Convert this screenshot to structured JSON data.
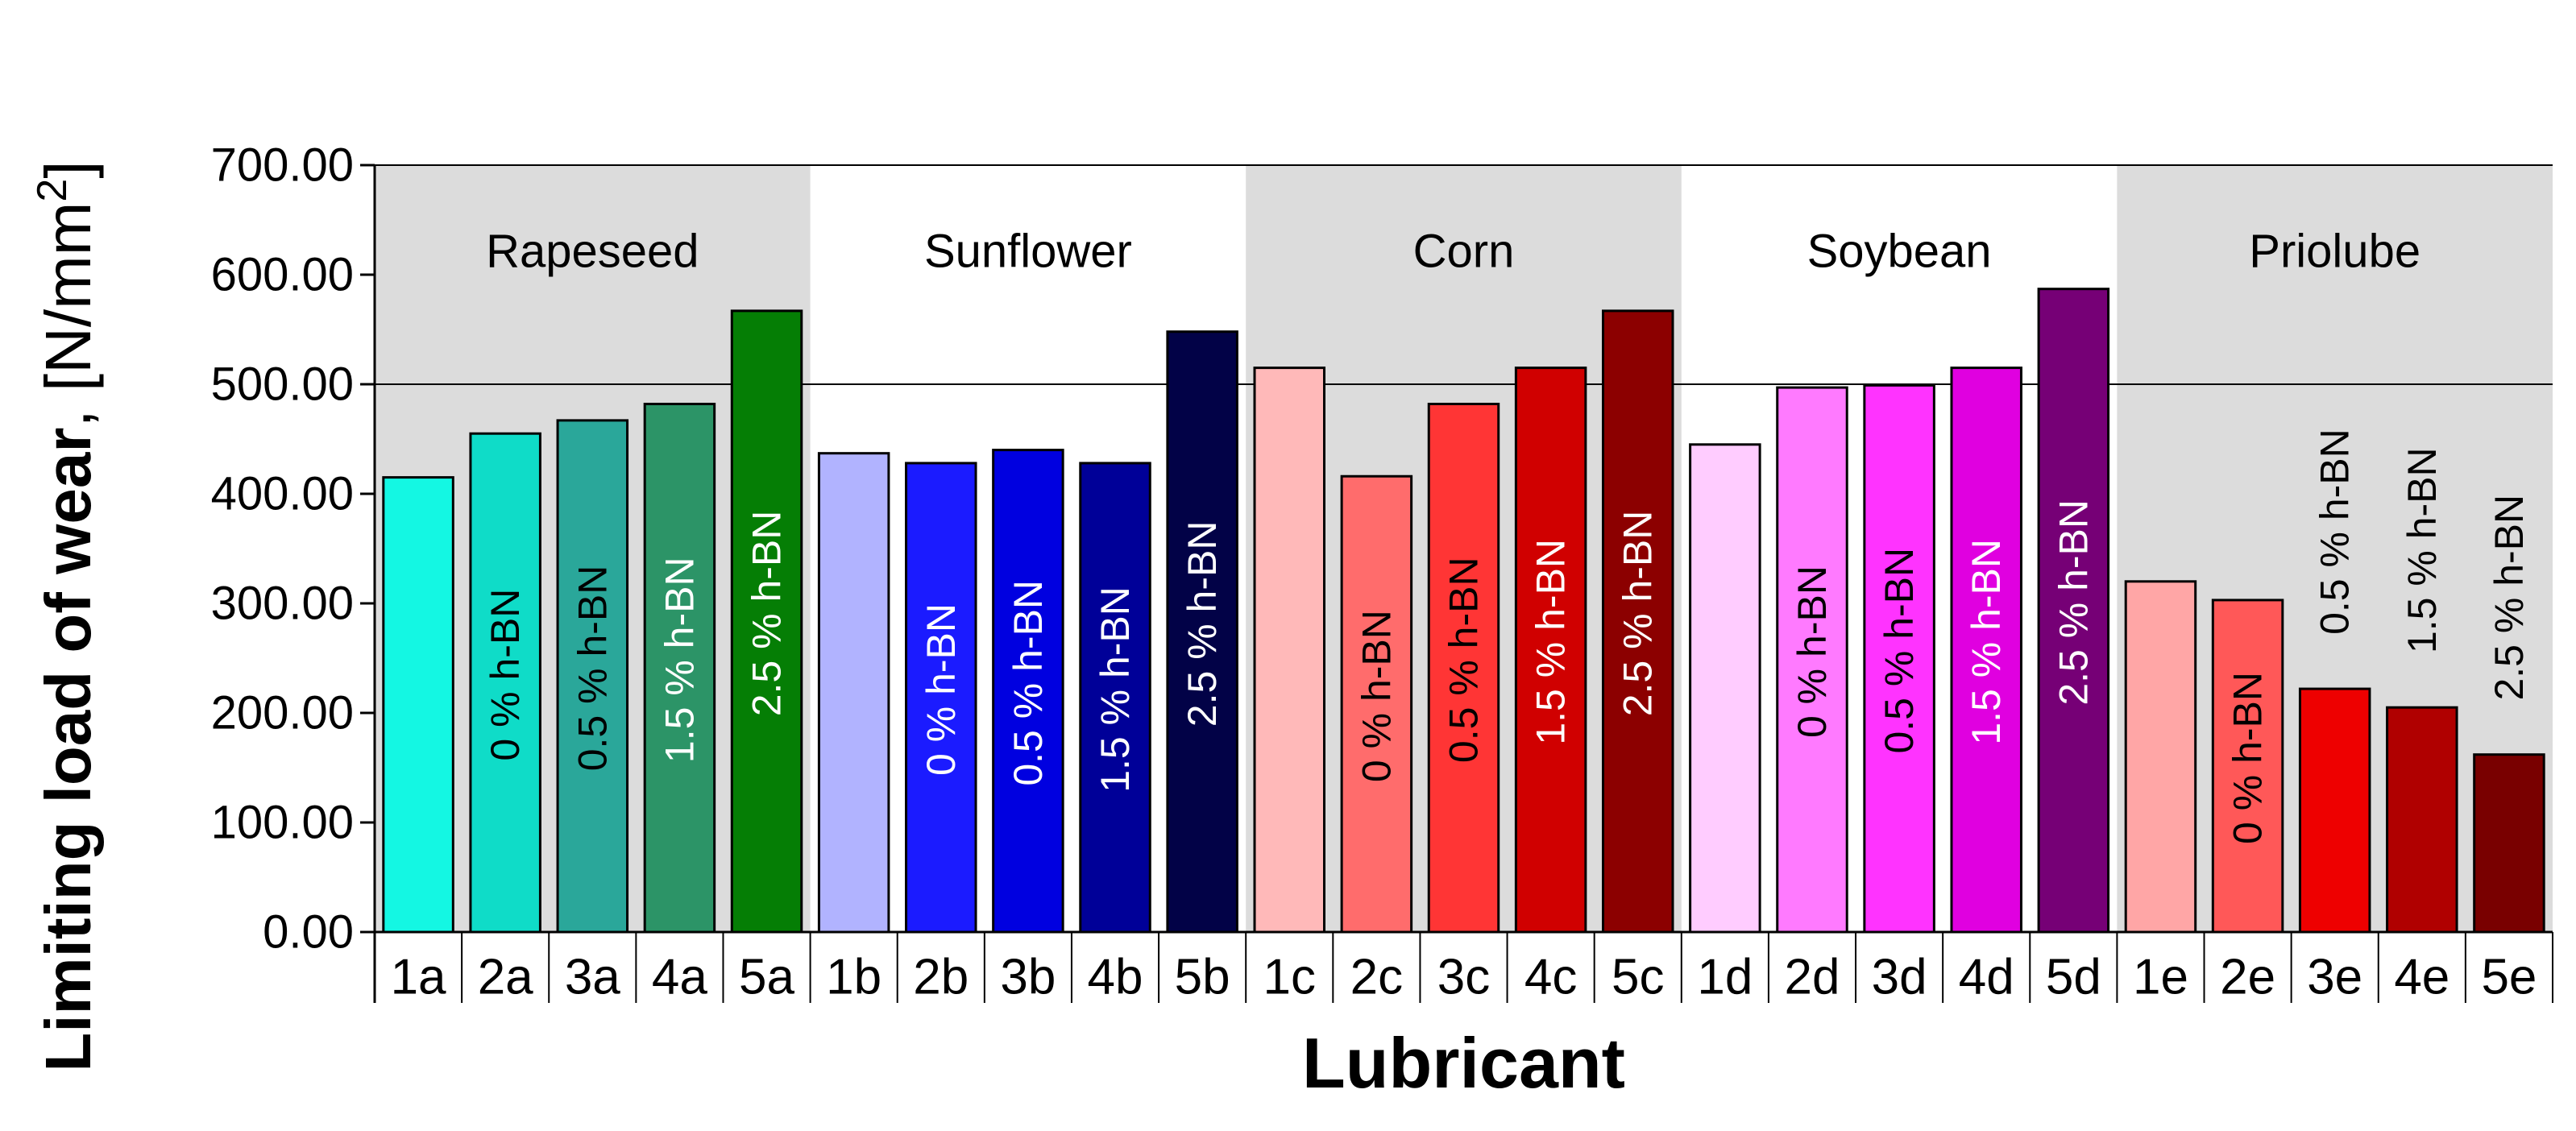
{
  "chart_data": {
    "type": "bar",
    "xlabel": "Lubricant",
    "ylabel_main": "Limiting load of ",
    "ylabel_bold": "wear",
    "ylabel_unit_prefix": ", [N/mm",
    "ylabel_unit_sup": "2",
    "ylabel_unit_suffix": "]",
    "ylim": [
      0,
      700
    ],
    "yticks": [
      "0.00",
      "100.00",
      "200.00",
      "300.00",
      "400.00",
      "500.00",
      "600.00",
      "700.00"
    ],
    "reference_line": 500,
    "groups": [
      {
        "name": "Rapeseed",
        "shaded": true
      },
      {
        "name": "Sunflower",
        "shaded": false
      },
      {
        "name": "Corn",
        "shaded": true
      },
      {
        "name": "Soybean",
        "shaded": false
      },
      {
        "name": "Priolube",
        "shaded": true
      }
    ],
    "categories": [
      "1a",
      "2a",
      "3a",
      "4a",
      "5a",
      "1b",
      "2b",
      "3b",
      "4b",
      "5b",
      "1c",
      "2c",
      "3c",
      "4c",
      "5c",
      "1d",
      "2d",
      "3d",
      "4d",
      "5d",
      "1e",
      "2e",
      "3e",
      "4e",
      "5e"
    ],
    "values": [
      415,
      455,
      467,
      482,
      567,
      437,
      428,
      440,
      428,
      548,
      515,
      416,
      482,
      515,
      567,
      445,
      497,
      499,
      515,
      587,
      320,
      303,
      222,
      205,
      162
    ],
    "colors": [
      "#14f7e3",
      "#0fdcc8",
      "#2aa79a",
      "#2c9467",
      "#057e05",
      "#b1b3ff",
      "#1b1bff",
      "#0000e0",
      "#000098",
      "#020247",
      "#ffb9b9",
      "#ff6c6c",
      "#ff3535",
      "#d00000",
      "#8c0000",
      "#ffccff",
      "#ff7aff",
      "#ff33ff",
      "#e000e0",
      "#760076",
      "#ffa6a6",
      "#ff5858",
      "#ee0000",
      "#b00000",
      "#790000"
    ],
    "bar_labels": [
      "",
      "0 % h-BN",
      "0.5 % h-BN",
      "1.5 % h-BN",
      "2.5 % h-BN",
      "",
      "0 % h-BN",
      "0.5 % h-BN",
      "1.5 % h-BN",
      "2.5 % h-BN",
      "",
      "0 % h-BN",
      "0.5 % h-BN",
      "1.5 % h-BN",
      "2.5 % h-BN",
      "",
      "0 % h-BN",
      "0.5 % h-BN",
      "1.5 % h-BN",
      "2.5 % h-BN",
      "",
      "0 % h-BN",
      "0.5 % h-BN",
      "1.5 % h-BN",
      "2.5 % h-BN"
    ],
    "bar_label_outside": [
      false,
      false,
      false,
      false,
      false,
      false,
      false,
      false,
      false,
      false,
      false,
      false,
      false,
      false,
      false,
      false,
      false,
      false,
      false,
      false,
      false,
      false,
      true,
      true,
      true
    ],
    "bar_label_colors": [
      "",
      "#000000",
      "#000000",
      "#ffffff",
      "#ffffff",
      "",
      "#ffffff",
      "#ffffff",
      "#ffffff",
      "#ffffff",
      "",
      "#000000",
      "#000000",
      "#ffffff",
      "#ffffff",
      "",
      "#000000",
      "#000000",
      "#ffffff",
      "#ffffff",
      "",
      "#000000",
      "#000000",
      "#000000",
      "#000000"
    ]
  }
}
